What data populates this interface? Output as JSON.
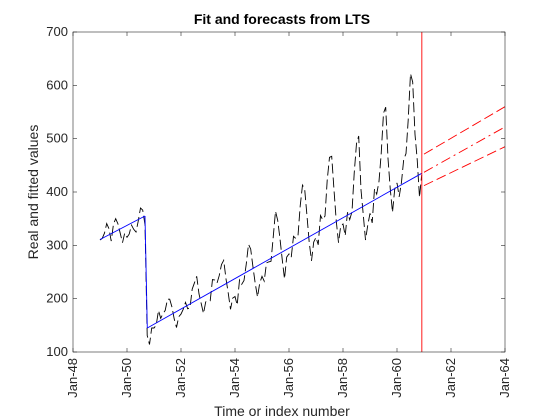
{
  "chart_data": {
    "type": "line",
    "title": "Fit and forecasts from LTS",
    "xlabel": "Time or index number",
    "ylabel": "Real and fitted values",
    "xlim": [
      1948,
      1964
    ],
    "ylim": [
      100,
      700
    ],
    "grid": false,
    "x_ticks": [
      {
        "value": 1948,
        "label": "Jan-48"
      },
      {
        "value": 1950,
        "label": "Jan-50"
      },
      {
        "value": 1952,
        "label": "Jan-52"
      },
      {
        "value": 1954,
        "label": "Jan-54"
      },
      {
        "value": 1956,
        "label": "Jan-56"
      },
      {
        "value": 1958,
        "label": "Jan-58"
      },
      {
        "value": 1960,
        "label": "Jan-60"
      },
      {
        "value": 1962,
        "label": "Jan-62"
      },
      {
        "value": 1964,
        "label": "Jan-64"
      }
    ],
    "y_ticks": [
      100,
      200,
      300,
      400,
      500,
      600,
      700
    ],
    "series": [
      {
        "role": "real",
        "color": "#000000",
        "line_style": "dashed",
        "x_start": 1949.0,
        "x_step": 0.08333333,
        "values": [
          310,
          313,
          323,
          341,
          331,
          308,
          340,
          350,
          340,
          323,
          305,
          323,
          315,
          321,
          338,
          330,
          325,
          345,
          370,
          366,
          339,
          131,
          114,
          145,
          145,
          150,
          178,
          163,
          172,
          178,
          199,
          199,
          184,
          162,
          146,
          166,
          171,
          180,
          193,
          181,
          183,
          218,
          230,
          242,
          209,
          191,
          172,
          194,
          196,
          196,
          236,
          235,
          229,
          243,
          264,
          272,
          237,
          211,
          180,
          201,
          204,
          188,
          235,
          227,
          234,
          264,
          302,
          293,
          259,
          229,
          203,
          229,
          242,
          233,
          267,
          269,
          270,
          315,
          364,
          347,
          312,
          274,
          237,
          278,
          284,
          277,
          317,
          313,
          318,
          374,
          413,
          405,
          355,
          306,
          271,
          306,
          315,
          301,
          356,
          348,
          355,
          422,
          465,
          467,
          404,
          347,
          305,
          336,
          340,
          318,
          362,
          348,
          363,
          435,
          491,
          505,
          404,
          359,
          310,
          337,
          360,
          342,
          406,
          396,
          420,
          472,
          548,
          559,
          463,
          407,
          362,
          405,
          417,
          391,
          419,
          461,
          472,
          535,
          622,
          606,
          508,
          461,
          390,
          432
        ]
      },
      {
        "role": "fitted",
        "color": "#0000ff",
        "line_style": "solid",
        "segments": [
          {
            "x": [
              1949.0,
              1950.667
            ],
            "y": [
              311,
              355
            ]
          },
          {
            "x": [
              1950.667,
              1950.75
            ],
            "y": [
              355,
              145
            ]
          },
          {
            "x": [
              1950.75,
              1960.917
            ],
            "y": [
              145,
              435
            ]
          }
        ]
      },
      {
        "role": "forecast-center",
        "color": "#ff0000",
        "line_style": "dash-dot",
        "x": [
          1961.0,
          1964.0
        ],
        "y": [
          437,
          522
        ]
      },
      {
        "role": "forecast-upper",
        "color": "#ff0000",
        "line_style": "dashed",
        "x": [
          1961.0,
          1964.0
        ],
        "y": [
          471,
          560
        ]
      },
      {
        "role": "forecast-lower",
        "color": "#ff0000",
        "line_style": "dashed",
        "x": [
          1961.0,
          1964.0
        ],
        "y": [
          412,
          485
        ]
      }
    ],
    "annotations": [
      {
        "type": "vline",
        "x": 1960.92,
        "color": "#ff0000"
      }
    ]
  }
}
